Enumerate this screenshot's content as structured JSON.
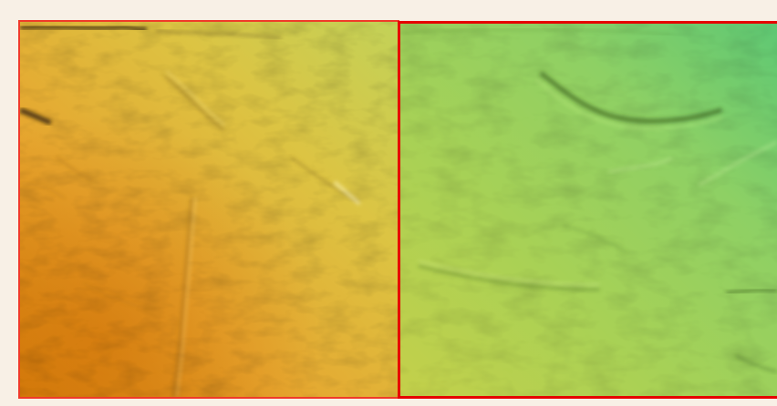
{
  "image": {
    "kind": "shaded-relief elevation tiles",
    "tile_count": 2,
    "tiles": [
      {
        "id": "left",
        "selected": false,
        "palette": [
          "#d7860f",
          "#e8ad34",
          "#d8c84a",
          "#b9d160"
        ],
        "outline_color": "#f03a2a"
      },
      {
        "id": "right",
        "selected": true,
        "palette": [
          "#b9cf4c",
          "#9fd15a",
          "#7fd06b",
          "#5ec873"
        ],
        "outline_color": "#e60000"
      }
    ]
  }
}
